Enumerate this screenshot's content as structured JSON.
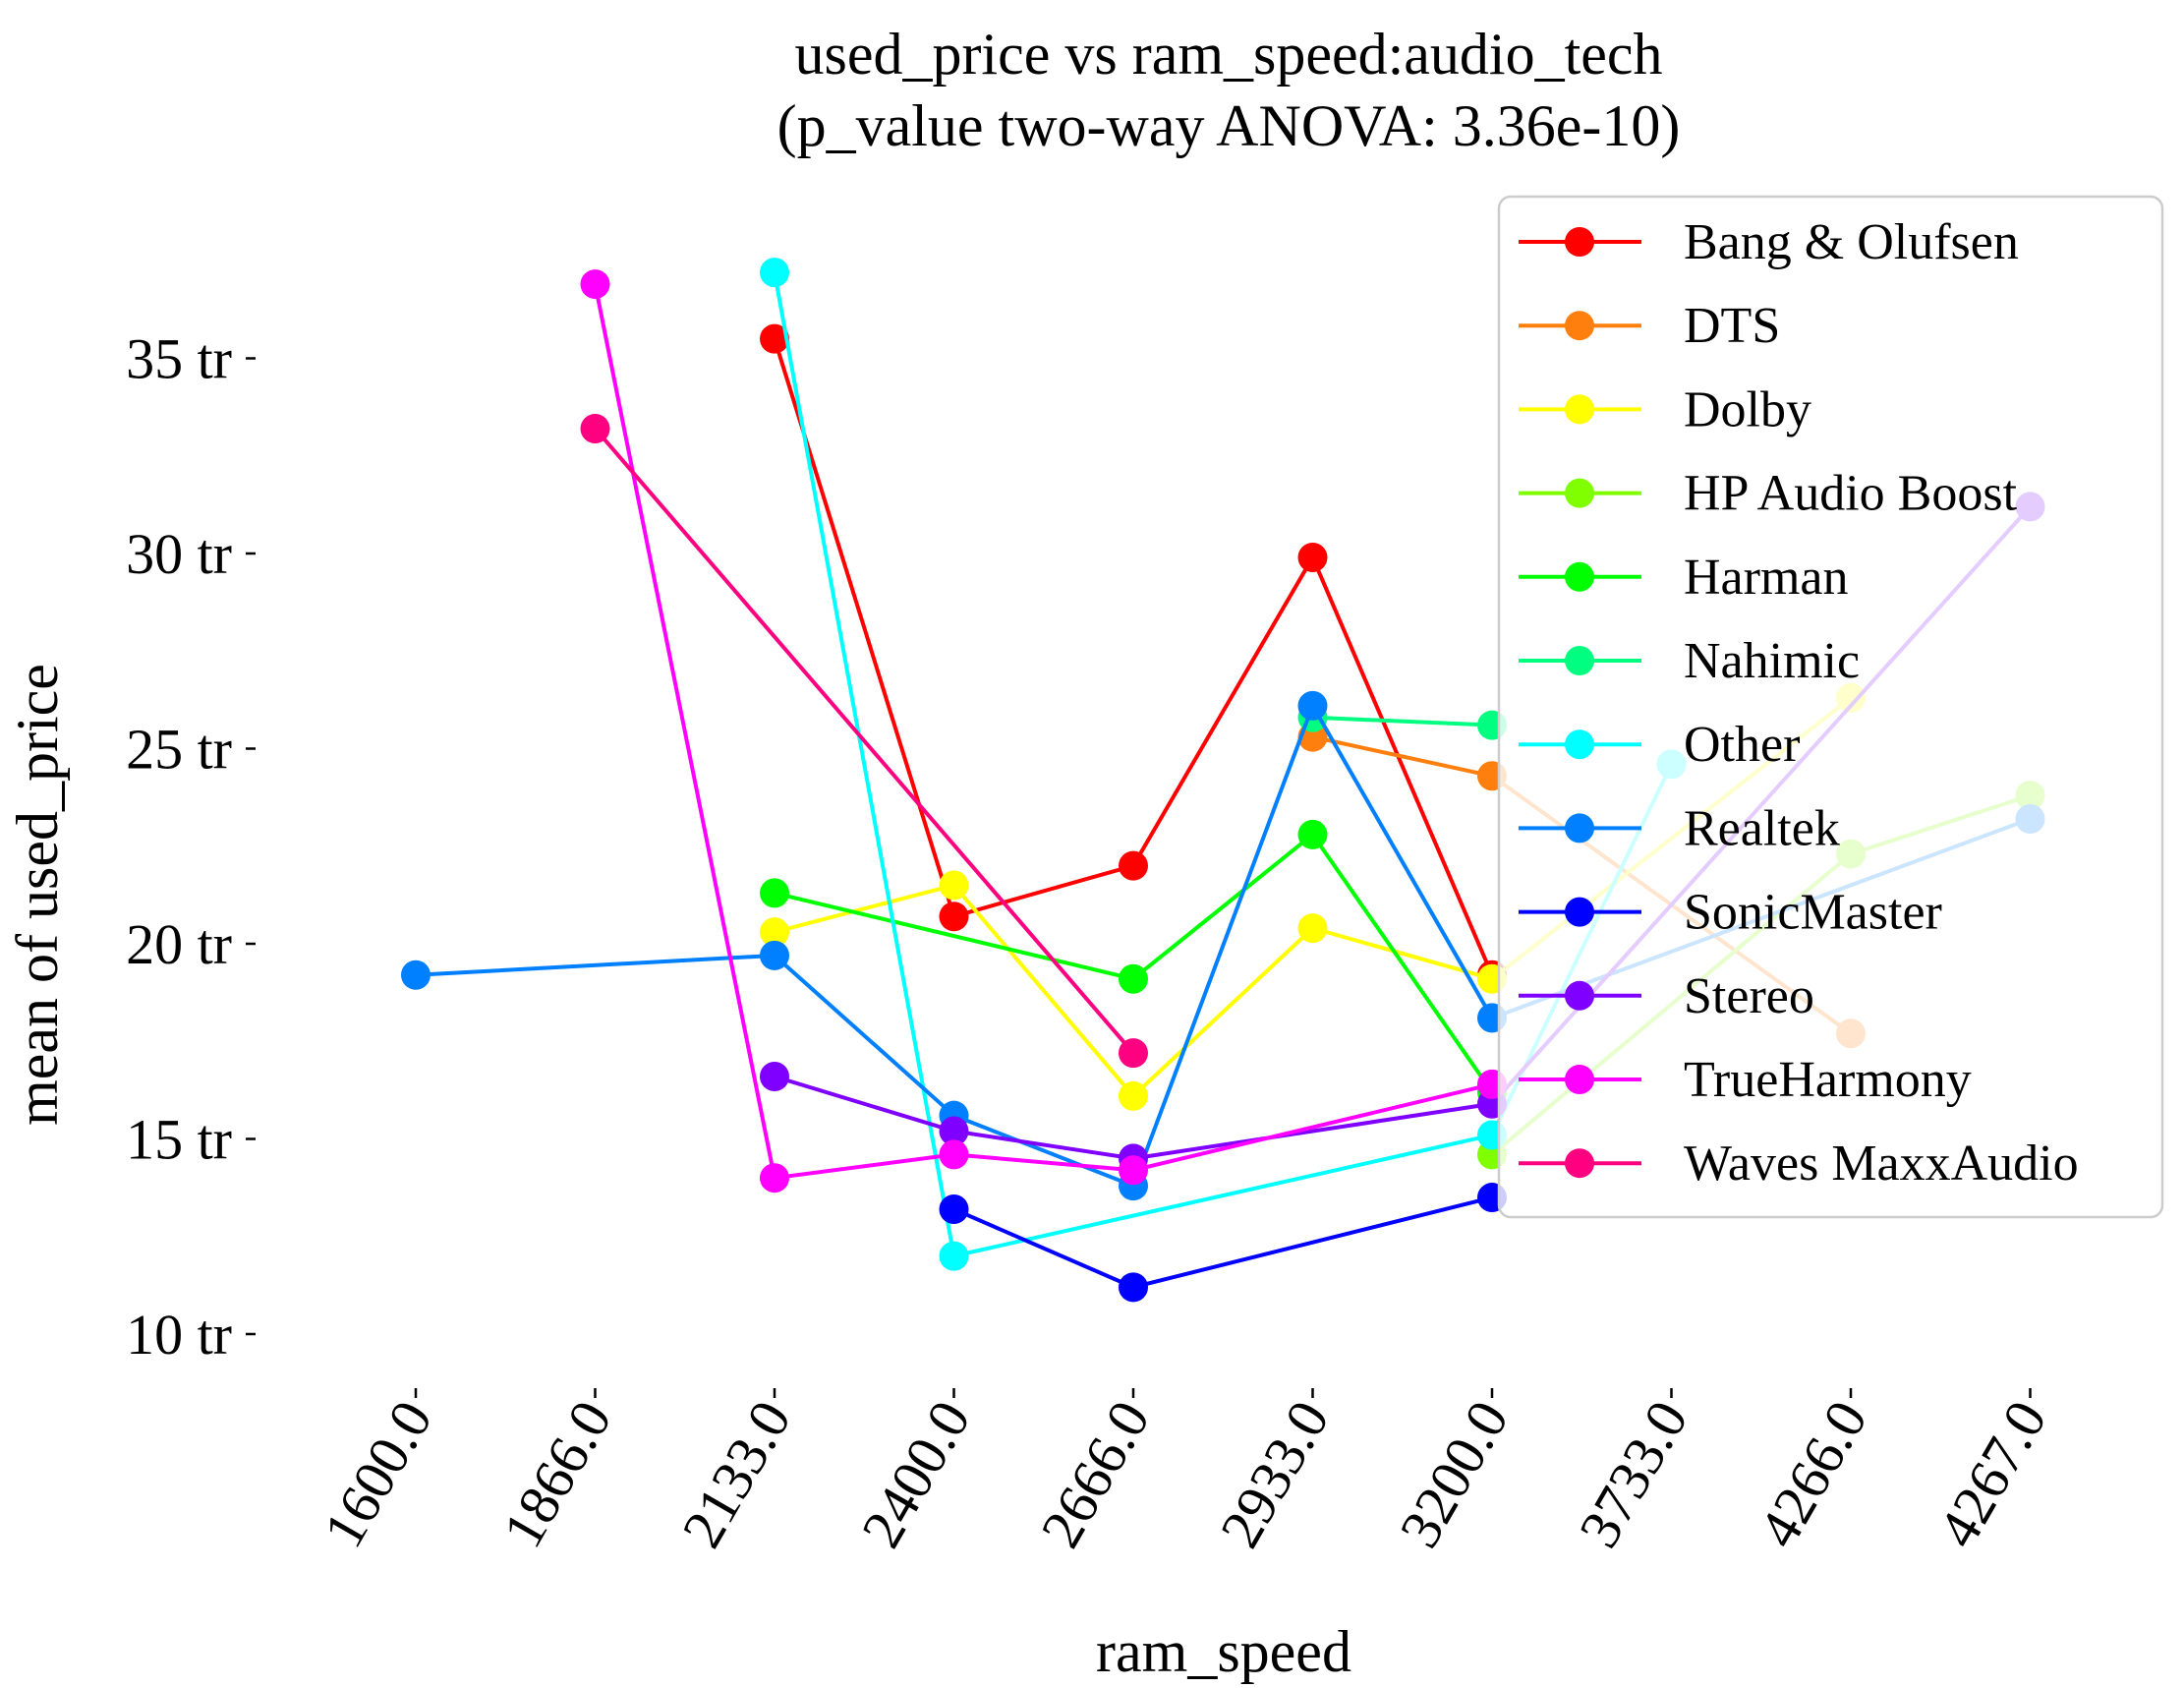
{
  "chart_data": {
    "type": "line",
    "title_lines": [
      "used_price vs ram_speed:audio_tech",
      "(p_value two-way ANOVA: 3.36e-10)"
    ],
    "xlabel": "ram_speed",
    "ylabel": "mean of used_price",
    "categories": [
      "1600.0",
      "1866.0",
      "2133.0",
      "2400.0",
      "2666.0",
      "2933.0",
      "3200.0",
      "3733.0",
      "4266.0",
      "4267.0"
    ],
    "y_unit_suffix": " tr",
    "yticks": [
      10,
      15,
      20,
      25,
      30,
      35
    ],
    "ytick_labels": [
      "10 tr",
      "15 tr",
      "20 tr",
      "25 tr",
      "30 tr",
      "35 tr"
    ],
    "ylim": [
      8.5,
      38.5
    ],
    "grid": false,
    "legend_position": "top-right",
    "series": [
      {
        "name": "Bang & Olufsen",
        "color": "#ff0000",
        "values": [
          null,
          null,
          35.5,
          20.7,
          22.0,
          29.9,
          19.2,
          null,
          null,
          null
        ]
      },
      {
        "name": "DTS",
        "color": "#ff7f0e",
        "values": [
          null,
          null,
          null,
          null,
          null,
          25.3,
          24.3,
          null,
          17.7,
          null
        ]
      },
      {
        "name": "Dolby",
        "color": "#ffff00",
        "values": [
          null,
          null,
          20.3,
          21.5,
          16.1,
          20.4,
          19.1,
          null,
          26.3,
          null
        ]
      },
      {
        "name": "HP Audio Boost",
        "color": "#80ff00",
        "values": [
          null,
          null,
          null,
          null,
          null,
          null,
          14.6,
          null,
          22.3,
          23.8
        ]
      },
      {
        "name": "Harman",
        "color": "#00ff00",
        "values": [
          null,
          null,
          21.3,
          null,
          19.1,
          22.8,
          16.2,
          null,
          null,
          null
        ]
      },
      {
        "name": "Nahimic",
        "color": "#00ff80",
        "values": [
          null,
          null,
          null,
          null,
          null,
          25.8,
          25.6,
          null,
          null,
          null
        ]
      },
      {
        "name": "Other",
        "color": "#00ffff",
        "values": [
          null,
          null,
          37.2,
          12.0,
          null,
          null,
          15.1,
          24.6,
          null,
          null
        ]
      },
      {
        "name": "Realtek",
        "color": "#007fff",
        "values": [
          19.2,
          null,
          19.7,
          15.6,
          13.8,
          26.1,
          18.1,
          null,
          null,
          23.2
        ]
      },
      {
        "name": "SonicMaster",
        "color": "#0000ff",
        "values": [
          null,
          null,
          null,
          13.2,
          11.2,
          null,
          13.5,
          null,
          null,
          null
        ]
      },
      {
        "name": "Stereo",
        "color": "#7f00ff",
        "values": [
          null,
          null,
          16.6,
          15.2,
          14.5,
          null,
          15.9,
          null,
          null,
          31.2
        ]
      },
      {
        "name": "TrueHarmony",
        "color": "#ff00ff",
        "values": [
          null,
          36.9,
          14.0,
          14.6,
          14.2,
          null,
          16.4,
          null,
          null,
          null
        ]
      },
      {
        "name": "Waves MaxxAudio",
        "color": "#ff0080",
        "values": [
          null,
          33.2,
          null,
          null,
          17.2,
          null,
          null,
          null,
          null,
          null
        ]
      }
    ]
  }
}
